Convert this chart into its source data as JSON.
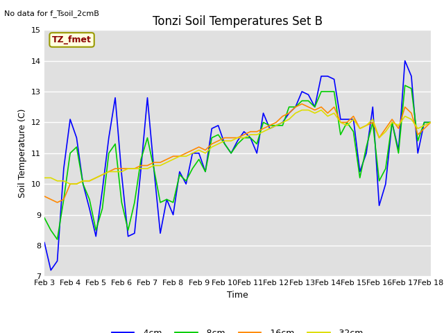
{
  "title": "Tonzi Soil Temperatures Set B",
  "xlabel": "Time",
  "ylabel": "Soil Temperature (C)",
  "note": "No data for f_Tsoil_2cmB",
  "legend_label": "TZ_fmet",
  "ylim": [
    7.0,
    15.0
  ],
  "yticks": [
    7.0,
    8.0,
    9.0,
    10.0,
    11.0,
    12.0,
    13.0,
    14.0,
    15.0
  ],
  "xtick_labels": [
    "Feb 3",
    "Feb 4",
    "Feb 5",
    "Feb 6",
    "Feb 7",
    "Feb 8",
    "Feb 9",
    "Feb 10",
    "Feb 11",
    "Feb 12",
    "Feb 13",
    "Feb 14",
    "Feb 15",
    "Feb 16",
    "Feb 17",
    "Feb 18"
  ],
  "colors": {
    "4cm": "#0000ff",
    "8cm": "#00cc00",
    "16cm": "#ff8800",
    "32cm": "#dddd00"
  },
  "plot_bg_color": "#e0e0e0",
  "title_fontsize": 12,
  "axis_label_fontsize": 9,
  "tick_fontsize": 8,
  "note_fontsize": 8,
  "x_4cm": [
    0,
    0.25,
    0.5,
    0.75,
    1.0,
    1.25,
    1.5,
    1.75,
    2.0,
    2.25,
    2.5,
    2.75,
    3.0,
    3.25,
    3.5,
    3.75,
    4.0,
    4.25,
    4.5,
    4.75,
    5.0,
    5.25,
    5.5,
    5.75,
    6.0,
    6.25,
    6.5,
    6.75,
    7.0,
    7.25,
    7.5,
    7.75,
    8.0,
    8.25,
    8.5,
    8.75,
    9.0,
    9.25,
    9.5,
    9.75,
    10.0,
    10.25,
    10.5,
    10.75,
    11.0,
    11.25,
    11.5,
    11.75,
    12.0,
    12.25,
    12.5,
    12.75,
    13.0,
    13.25,
    13.5,
    13.75,
    14.0,
    14.25,
    14.5,
    14.75,
    15.0
  ],
  "y_4cm": [
    8.1,
    7.2,
    7.5,
    10.5,
    12.1,
    11.5,
    10.0,
    9.2,
    8.3,
    9.8,
    11.5,
    12.8,
    10.3,
    8.3,
    8.4,
    10.5,
    12.8,
    10.5,
    8.4,
    9.5,
    9.0,
    10.4,
    10.0,
    11.0,
    11.0,
    10.4,
    11.8,
    11.9,
    11.3,
    11.0,
    11.4,
    11.7,
    11.5,
    11.0,
    12.3,
    11.8,
    11.9,
    12.0,
    12.3,
    12.5,
    13.0,
    12.9,
    12.5,
    13.5,
    13.5,
    13.4,
    12.1,
    12.1,
    12.1,
    10.4,
    11.0,
    12.5,
    9.3,
    10.0,
    12.0,
    11.1,
    14.0,
    13.5,
    11.0,
    12.0,
    12.0
  ],
  "x_8cm": [
    0,
    0.25,
    0.5,
    0.75,
    1.0,
    1.25,
    1.5,
    1.75,
    2.0,
    2.25,
    2.5,
    2.75,
    3.0,
    3.25,
    3.5,
    3.75,
    4.0,
    4.25,
    4.5,
    4.75,
    5.0,
    5.25,
    5.5,
    5.75,
    6.0,
    6.25,
    6.5,
    6.75,
    7.0,
    7.25,
    7.5,
    7.75,
    8.0,
    8.25,
    8.5,
    8.75,
    9.0,
    9.25,
    9.5,
    9.75,
    10.0,
    10.25,
    10.5,
    10.75,
    11.0,
    11.25,
    11.5,
    11.75,
    12.0,
    12.25,
    12.5,
    12.75,
    13.0,
    13.25,
    13.5,
    13.75,
    14.0,
    14.25,
    14.5,
    14.75,
    15.0
  ],
  "y_8cm": [
    8.9,
    8.5,
    8.2,
    9.5,
    11.0,
    11.2,
    10.0,
    9.5,
    8.5,
    9.2,
    11.0,
    11.3,
    9.4,
    8.5,
    9.4,
    10.8,
    11.5,
    10.5,
    9.4,
    9.5,
    9.4,
    10.3,
    10.1,
    10.5,
    10.8,
    10.4,
    11.5,
    11.6,
    11.3,
    11.0,
    11.3,
    11.5,
    11.5,
    11.3,
    12.0,
    11.9,
    11.9,
    11.9,
    12.5,
    12.5,
    12.7,
    12.7,
    12.5,
    13.0,
    13.0,
    13.0,
    11.6,
    12.0,
    11.7,
    10.2,
    11.2,
    12.0,
    10.1,
    10.5,
    12.0,
    11.0,
    13.2,
    13.1,
    11.4,
    12.0,
    12.0
  ],
  "x_16cm": [
    0,
    0.25,
    0.5,
    0.75,
    1.0,
    1.25,
    1.5,
    1.75,
    2.0,
    2.25,
    2.5,
    2.75,
    3.0,
    3.25,
    3.5,
    3.75,
    4.0,
    4.25,
    4.5,
    4.75,
    5.0,
    5.25,
    5.5,
    5.75,
    6.0,
    6.25,
    6.5,
    6.75,
    7.0,
    7.25,
    7.5,
    7.75,
    8.0,
    8.25,
    8.5,
    8.75,
    9.0,
    9.25,
    9.5,
    9.75,
    10.0,
    10.25,
    10.5,
    10.75,
    11.0,
    11.25,
    11.5,
    11.75,
    12.0,
    12.25,
    12.5,
    12.75,
    13.0,
    13.25,
    13.5,
    13.75,
    14.0,
    14.25,
    14.5,
    14.75,
    15.0
  ],
  "y_16cm": [
    9.6,
    9.5,
    9.4,
    9.5,
    10.0,
    10.0,
    10.1,
    10.1,
    10.2,
    10.3,
    10.4,
    10.5,
    10.5,
    10.5,
    10.5,
    10.6,
    10.6,
    10.7,
    10.7,
    10.8,
    10.9,
    10.9,
    11.0,
    11.1,
    11.2,
    11.1,
    11.3,
    11.4,
    11.5,
    11.5,
    11.5,
    11.6,
    11.7,
    11.7,
    11.8,
    11.9,
    12.0,
    12.2,
    12.3,
    12.5,
    12.6,
    12.5,
    12.4,
    12.5,
    12.3,
    12.5,
    12.0,
    12.0,
    12.2,
    11.8,
    11.9,
    12.0,
    11.5,
    11.8,
    12.1,
    11.8,
    12.5,
    12.3,
    11.6,
    11.8,
    12.0
  ],
  "x_32cm": [
    0,
    0.25,
    0.5,
    0.75,
    1.0,
    1.25,
    1.5,
    1.75,
    2.0,
    2.25,
    2.5,
    2.75,
    3.0,
    3.25,
    3.5,
    3.75,
    4.0,
    4.25,
    4.5,
    4.75,
    5.0,
    5.25,
    5.5,
    5.75,
    6.0,
    6.25,
    6.5,
    6.75,
    7.0,
    7.25,
    7.5,
    7.75,
    8.0,
    8.25,
    8.5,
    8.75,
    9.0,
    9.25,
    9.5,
    9.75,
    10.0,
    10.25,
    10.5,
    10.75,
    11.0,
    11.25,
    11.5,
    11.75,
    12.0,
    12.25,
    12.5,
    12.75,
    13.0,
    13.25,
    13.5,
    13.75,
    14.0,
    14.25,
    14.5,
    14.75,
    15.0
  ],
  "y_32cm": [
    10.2,
    10.2,
    10.1,
    10.1,
    10.0,
    10.0,
    10.1,
    10.1,
    10.2,
    10.3,
    10.4,
    10.4,
    10.4,
    10.5,
    10.5,
    10.5,
    10.5,
    10.6,
    10.6,
    10.7,
    10.8,
    10.9,
    10.9,
    11.0,
    11.1,
    11.0,
    11.2,
    11.3,
    11.4,
    11.4,
    11.5,
    11.5,
    11.6,
    11.6,
    11.7,
    11.8,
    11.9,
    12.0,
    12.1,
    12.3,
    12.4,
    12.4,
    12.3,
    12.4,
    12.2,
    12.3,
    12.0,
    11.9,
    12.1,
    11.8,
    11.9,
    12.1,
    11.5,
    11.7,
    12.0,
    11.9,
    12.2,
    12.1,
    11.8,
    11.9,
    12.0
  ]
}
